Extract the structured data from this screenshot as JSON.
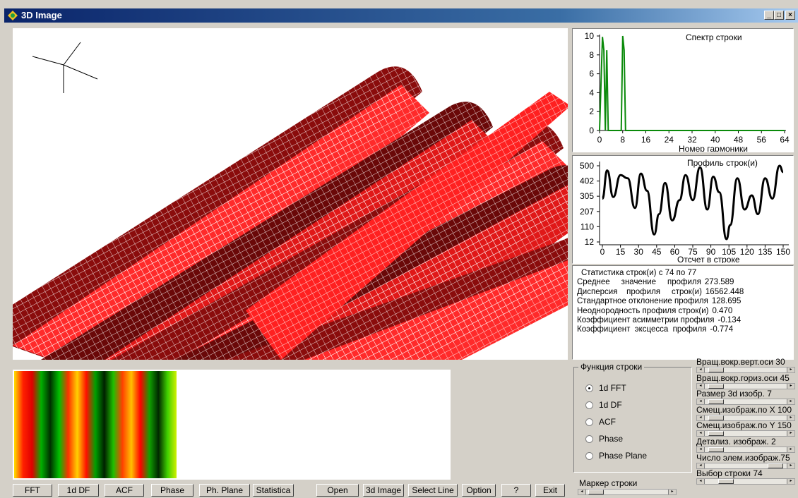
{
  "window": {
    "title": "3D Image",
    "min": "_",
    "max": "□",
    "close": "×"
  },
  "spectrum": {
    "title": "Спектр строки",
    "xlabel": "Номер гармоники",
    "yticks": [
      "10",
      "8",
      "6",
      "4",
      "2",
      "0"
    ],
    "xticks": [
      "0",
      "8",
      "16",
      "24",
      "32",
      "40",
      "48",
      "56",
      "64"
    ]
  },
  "profile": {
    "title": "Профиль строк(и)",
    "xlabel": "Отсчет в строке",
    "yticks": [
      "500",
      "402",
      "305",
      "207",
      "110",
      "12"
    ],
    "xticks": [
      "0",
      "15",
      "30",
      "45",
      "60",
      "75",
      "90",
      "105",
      "120",
      "135",
      "150"
    ]
  },
  "stats": {
    "title": "Статистика строк(и) с 74 по 77",
    "rows": [
      {
        "label": "Среднее     значение     профиля",
        "value": "273.589"
      },
      {
        "label": "Дисперсия    профиля     строк(и)",
        "value": "16562.448"
      },
      {
        "label": "Стандартное отклонение профиля",
        "value": "128.695"
      },
      {
        "label": "Неоднородность профиля строк(и)",
        "value": "0.470"
      },
      {
        "label": "Коэффициент асимметрии профиля",
        "value": "-0.134"
      },
      {
        "label": "Коэффициент  эксцесса  профиля",
        "value": "-0.774"
      }
    ]
  },
  "line_function": {
    "legend": "Функция строки",
    "options": [
      "1d FFT",
      "1d DF",
      "ACF",
      "Phase",
      "Phase Plane"
    ],
    "selected": "1d FFT"
  },
  "marker": {
    "label": "Маркер строки"
  },
  "sliders": [
    {
      "label": "Вращ.вокр.верт.оси 30",
      "value": 30
    },
    {
      "label": "Вращ.вокр.гориз.оси 45",
      "value": 45
    },
    {
      "label": "Размер 3d изобр. 7",
      "value": 7
    },
    {
      "label": "Смещ.изображ.по X 100",
      "value": 100
    },
    {
      "label": "Смещ.изображ.по Y 150",
      "value": 150
    },
    {
      "label": "Детализ. изображ. 2",
      "value": 2
    },
    {
      "label": "Число элем.изображ.75",
      "value": 75
    },
    {
      "label": "Выбор строки  74",
      "value": 74
    }
  ],
  "buttons": {
    "fft": "FFT",
    "df": "1d DF",
    "acf": "ACF",
    "phase": "Phase",
    "phplane": "Ph. Plane",
    "statistica": "Statistica",
    "open": "Open",
    "image3d": "3d Image",
    "select_line": "Select Line",
    "option": "Option",
    "help": "?",
    "exit": "Exit"
  },
  "colors": {
    "surface_bright": "#ff2020",
    "surface_dark": "#7a0a0a",
    "spectrum_line": "#0a8a0a",
    "profile_line": "#000000"
  },
  "chart_data": [
    {
      "type": "line",
      "title": "Спектр строки",
      "xlabel": "Номер гармоники",
      "ylabel": "",
      "xlim": [
        0,
        64
      ],
      "ylim": [
        0,
        10
      ],
      "x": [
        0,
        1,
        1.5,
        2,
        2.5,
        3,
        4,
        5,
        6,
        7,
        7.5,
        8,
        8.5,
        9,
        10,
        16,
        24,
        32,
        40,
        48,
        56,
        64
      ],
      "series": [
        {
          "values": [
            0,
            9.9,
            8.5,
            0,
            8.5,
            0,
            0,
            0,
            0,
            0,
            0,
            10,
            8.5,
            0,
            0,
            0,
            0,
            0,
            0,
            0,
            0,
            0
          ]
        }
      ]
    },
    {
      "type": "line",
      "title": "Профиль строк(и)",
      "xlabel": "Отсчет в строке",
      "ylabel": "",
      "xlim": [
        0,
        150
      ],
      "ylim": [
        12,
        500
      ],
      "x": [
        0,
        4,
        9,
        15,
        21,
        27,
        32,
        37,
        43,
        47,
        52,
        58,
        64,
        69,
        75,
        81,
        87,
        92,
        97,
        103,
        106,
        112,
        118,
        124,
        129,
        135,
        141,
        147,
        150
      ],
      "series": [
        {
          "values": [
            290,
            470,
            300,
            440,
            420,
            230,
            450,
            340,
            60,
            190,
            390,
            150,
            280,
            440,
            280,
            490,
            220,
            430,
            330,
            30,
            120,
            420,
            220,
            310,
            190,
            420,
            290,
            500,
            460
          ]
        }
      ]
    }
  ]
}
